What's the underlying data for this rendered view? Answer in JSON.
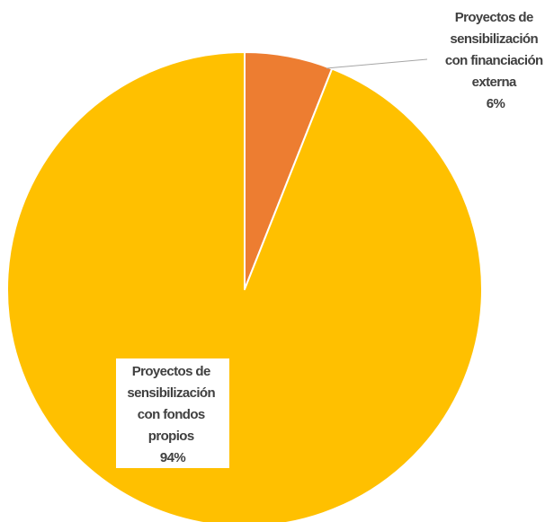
{
  "chart_data": {
    "type": "pie",
    "title": "",
    "slices": [
      {
        "label_lines": [
          "Proyectos de",
          "sensibilización",
          "con financiación",
          "externa"
        ],
        "percent_label": "6%",
        "value": 6,
        "color": "#ED7D31"
      },
      {
        "label_lines": [
          "Proyectos de",
          "sensibilización",
          "con fondos",
          "propios"
        ],
        "percent_label": "94%",
        "value": 94,
        "color": "#FFC000"
      }
    ],
    "start_angle_deg": 0,
    "direction": "clockwise",
    "legend": "none"
  }
}
